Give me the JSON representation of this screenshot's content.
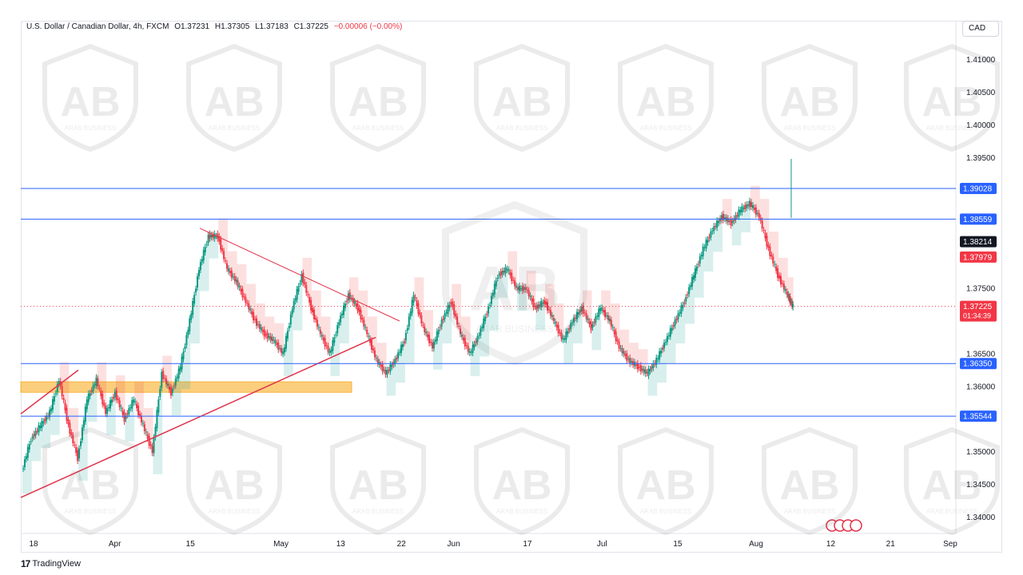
{
  "header": {
    "symbol": "U.S. Dollar / Canadian Dollar, 4h, FXCM",
    "open": "O1.37231",
    "high": "H1.37305",
    "low": "L1.37183",
    "close": "C1.37225",
    "change": "−0.00006 (−0.00%)"
  },
  "currency_button": "CAD",
  "brand": "TradingView",
  "watermark_text": "ARAB BUSINESS",
  "colors": {
    "up_candle": "#089981",
    "down_candle": "#f23645",
    "horizontal_line": "#2962ff",
    "trend_line": "#e0334a",
    "zone": "#f9b437",
    "cloud_up": "#26a69a",
    "cloud_down": "#ef5350",
    "price_line": "#f23645"
  },
  "chart_data": {
    "type": "candlestick",
    "y_axis_ticks": [
      "1.41000",
      "1.40500",
      "1.40000",
      "1.39500",
      "1.37500",
      "1.36500",
      "1.36000",
      "1.35000",
      "1.34500",
      "1.34000"
    ],
    "x_axis_ticks": [
      "18",
      "Apr",
      "15",
      "May",
      "13",
      "22",
      "Jun",
      "17",
      "Jul",
      "15",
      "Aug",
      "12",
      "21",
      "Sep"
    ],
    "ylim": [
      1.3375,
      1.4135
    ],
    "horizontal_levels": [
      {
        "value": 1.39028,
        "label": "1.39028"
      },
      {
        "value": 1.38559,
        "label": "1.38559"
      },
      {
        "value": 1.3635,
        "label": "1.36350"
      },
      {
        "value": 1.35544,
        "label": "1.35544"
      }
    ],
    "price_labels": [
      {
        "value": 1.38214,
        "label": "1.38214",
        "style": "black"
      },
      {
        "value": 1.37979,
        "label": "1.37979",
        "style": "red"
      },
      {
        "value": 1.37225,
        "label": "1.37225",
        "sub": "01:34:39",
        "style": "red"
      }
    ],
    "zone": {
      "from": 1.3591,
      "to": 1.3607
    },
    "series": [
      {
        "t": 0.0,
        "v": 1.347
      },
      {
        "t": 0.01,
        "v": 1.352
      },
      {
        "t": 0.02,
        "v": 1.354
      },
      {
        "t": 0.03,
        "v": 1.356
      },
      {
        "t": 0.04,
        "v": 1.361
      },
      {
        "t": 0.05,
        "v": 1.354
      },
      {
        "t": 0.06,
        "v": 1.349
      },
      {
        "t": 0.07,
        "v": 1.358
      },
      {
        "t": 0.08,
        "v": 1.361
      },
      {
        "t": 0.09,
        "v": 1.356
      },
      {
        "t": 0.1,
        "v": 1.359
      },
      {
        "t": 0.11,
        "v": 1.355
      },
      {
        "t": 0.12,
        "v": 1.358
      },
      {
        "t": 0.13,
        "v": 1.354
      },
      {
        "t": 0.14,
        "v": 1.35
      },
      {
        "t": 0.15,
        "v": 1.362
      },
      {
        "t": 0.16,
        "v": 1.359
      },
      {
        "t": 0.17,
        "v": 1.363
      },
      {
        "t": 0.18,
        "v": 1.37
      },
      {
        "t": 0.19,
        "v": 1.378
      },
      {
        "t": 0.2,
        "v": 1.383
      },
      {
        "t": 0.21,
        "v": 1.383
      },
      {
        "t": 0.22,
        "v": 1.378
      },
      {
        "t": 0.23,
        "v": 1.376
      },
      {
        "t": 0.24,
        "v": 1.373
      },
      {
        "t": 0.25,
        "v": 1.37
      },
      {
        "t": 0.26,
        "v": 1.368
      },
      {
        "t": 0.27,
        "v": 1.367
      },
      {
        "t": 0.28,
        "v": 1.365
      },
      {
        "t": 0.29,
        "v": 1.372
      },
      {
        "t": 0.3,
        "v": 1.377
      },
      {
        "t": 0.31,
        "v": 1.372
      },
      {
        "t": 0.32,
        "v": 1.368
      },
      {
        "t": 0.33,
        "v": 1.365
      },
      {
        "t": 0.34,
        "v": 1.37
      },
      {
        "t": 0.35,
        "v": 1.374
      },
      {
        "t": 0.36,
        "v": 1.372
      },
      {
        "t": 0.37,
        "v": 1.368
      },
      {
        "t": 0.38,
        "v": 1.364
      },
      {
        "t": 0.39,
        "v": 1.362
      },
      {
        "t": 0.4,
        "v": 1.364
      },
      {
        "t": 0.41,
        "v": 1.367
      },
      {
        "t": 0.42,
        "v": 1.374
      },
      {
        "t": 0.43,
        "v": 1.369
      },
      {
        "t": 0.44,
        "v": 1.366
      },
      {
        "t": 0.45,
        "v": 1.37
      },
      {
        "t": 0.46,
        "v": 1.373
      },
      {
        "t": 0.47,
        "v": 1.368
      },
      {
        "t": 0.48,
        "v": 1.365
      },
      {
        "t": 0.49,
        "v": 1.368
      },
      {
        "t": 0.5,
        "v": 1.372
      },
      {
        "t": 0.51,
        "v": 1.377
      },
      {
        "t": 0.52,
        "v": 1.378
      },
      {
        "t": 0.53,
        "v": 1.375
      },
      {
        "t": 0.54,
        "v": 1.375
      },
      {
        "t": 0.55,
        "v": 1.372
      },
      {
        "t": 0.56,
        "v": 1.373
      },
      {
        "t": 0.57,
        "v": 1.37
      },
      {
        "t": 0.58,
        "v": 1.367
      },
      {
        "t": 0.59,
        "v": 1.37
      },
      {
        "t": 0.6,
        "v": 1.372
      },
      {
        "t": 0.61,
        "v": 1.369
      },
      {
        "t": 0.62,
        "v": 1.372
      },
      {
        "t": 0.63,
        "v": 1.37
      },
      {
        "t": 0.64,
        "v": 1.366
      },
      {
        "t": 0.65,
        "v": 1.364
      },
      {
        "t": 0.66,
        "v": 1.363
      },
      {
        "t": 0.67,
        "v": 1.362
      },
      {
        "t": 0.68,
        "v": 1.364
      },
      {
        "t": 0.69,
        "v": 1.367
      },
      {
        "t": 0.7,
        "v": 1.37
      },
      {
        "t": 0.71,
        "v": 1.373
      },
      {
        "t": 0.72,
        "v": 1.377
      },
      {
        "t": 0.73,
        "v": 1.381
      },
      {
        "t": 0.74,
        "v": 1.384
      },
      {
        "t": 0.75,
        "v": 1.386
      },
      {
        "t": 0.76,
        "v": 1.385
      },
      {
        "t": 0.77,
        "v": 1.387
      },
      {
        "t": 0.78,
        "v": 1.388
      },
      {
        "t": 0.79,
        "v": 1.386
      },
      {
        "t": 0.8,
        "v": 1.381
      },
      {
        "t": 0.81,
        "v": 1.377
      },
      {
        "t": 0.82,
        "v": 1.374
      },
      {
        "t": 0.826,
        "v": 1.3722
      }
    ]
  }
}
